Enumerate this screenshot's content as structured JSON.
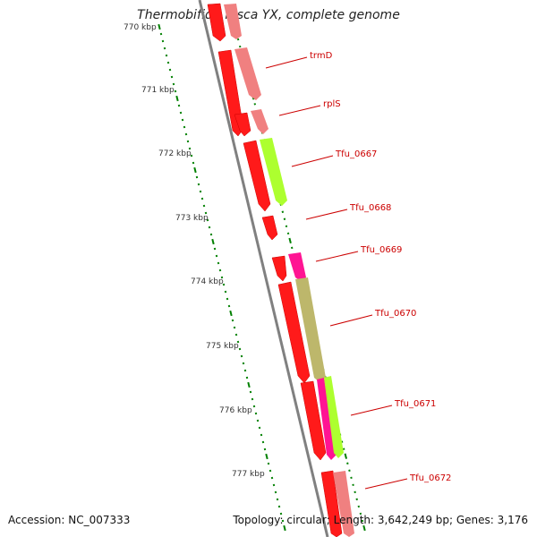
{
  "title": "Thermobifida fusca YX, complete genome",
  "footer": {
    "accession": "Accession: NC_007333",
    "info": "Topology: circular; Length: 3,642,249 bp; Genes: 3,176"
  },
  "kbp_labels": [
    "770 kbp",
    "771 kbp",
    "772 kbp",
    "773 kbp",
    "774 kbp",
    "775 kbp",
    "776 kbp",
    "777 kbp"
  ],
  "genes": [
    {
      "label": "trmD",
      "color": "#f08080"
    },
    {
      "label": "rplS",
      "color": "#f08080"
    },
    {
      "label": "Tfu_0667",
      "color": "#adff2f"
    },
    {
      "label": "Tfu_0668",
      "color": "#ff0000"
    },
    {
      "label": "Tfu_0669",
      "color": "#ff1493"
    },
    {
      "label": "Tfu_0670",
      "color": "#bdb76b"
    },
    {
      "label": "Tfu_0671",
      "color": "#ff1493"
    },
    {
      "label": "Tfu_0672",
      "color": "#f08080"
    }
  ],
  "colors": {
    "backbone": "#808080",
    "cds": "#ff0000",
    "tick": "#008000",
    "label": "#cc0000"
  }
}
